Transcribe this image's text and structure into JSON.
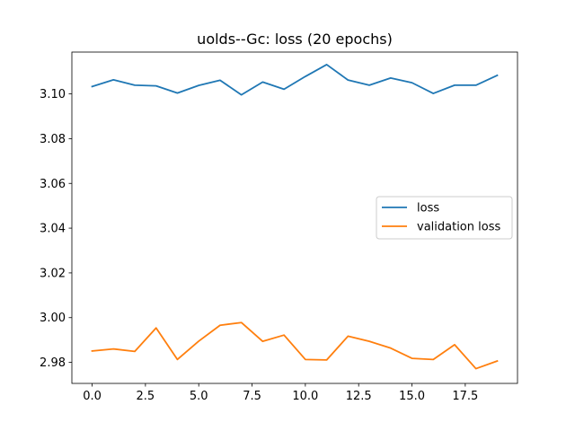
{
  "chart_data": {
    "type": "line",
    "title": "uolds--Gc: loss (20 epochs)",
    "xlabel": "",
    "ylabel": "",
    "xlim": [
      -0.95,
      19.95
    ],
    "ylim": [
      2.9706,
      3.1187
    ],
    "x_ticks": [
      0,
      2.5,
      5,
      7.5,
      10,
      12.5,
      15,
      17.5
    ],
    "x_tick_labels": [
      "0.0",
      "2.5",
      "5.0",
      "7.5",
      "10.0",
      "12.5",
      "15.0",
      "17.5"
    ],
    "y_ticks": [
      2.98,
      3.0,
      3.02,
      3.04,
      3.06,
      3.08,
      3.1
    ],
    "y_tick_labels": [
      "2.98",
      "3.00",
      "3.02",
      "3.04",
      "3.06",
      "3.08",
      "3.10"
    ],
    "grid": false,
    "legend_position": "center-right",
    "x": [
      0,
      1,
      2,
      3,
      4,
      5,
      6,
      7,
      8,
      9,
      10,
      11,
      12,
      13,
      14,
      15,
      16,
      17,
      18,
      19
    ],
    "series": [
      {
        "name": "loss",
        "color": "#1f77b4",
        "values": [
          3.1033,
          3.1063,
          3.1039,
          3.1036,
          3.1004,
          3.1038,
          3.1061,
          3.0996,
          3.1053,
          3.1021,
          3.1078,
          3.1131,
          3.1062,
          3.1039,
          3.1071,
          3.105,
          3.1002,
          3.1039,
          3.1039,
          3.1083
        ]
      },
      {
        "name": "validation loss",
        "color": "#ff7f0e",
        "values": [
          2.9851,
          2.986,
          2.9849,
          2.9954,
          2.9813,
          2.9895,
          2.9966,
          2.9978,
          2.9894,
          2.9922,
          2.9813,
          2.9811,
          2.9917,
          2.9894,
          2.9864,
          2.9818,
          2.9813,
          2.9879,
          2.9772,
          2.9806
        ]
      }
    ]
  }
}
